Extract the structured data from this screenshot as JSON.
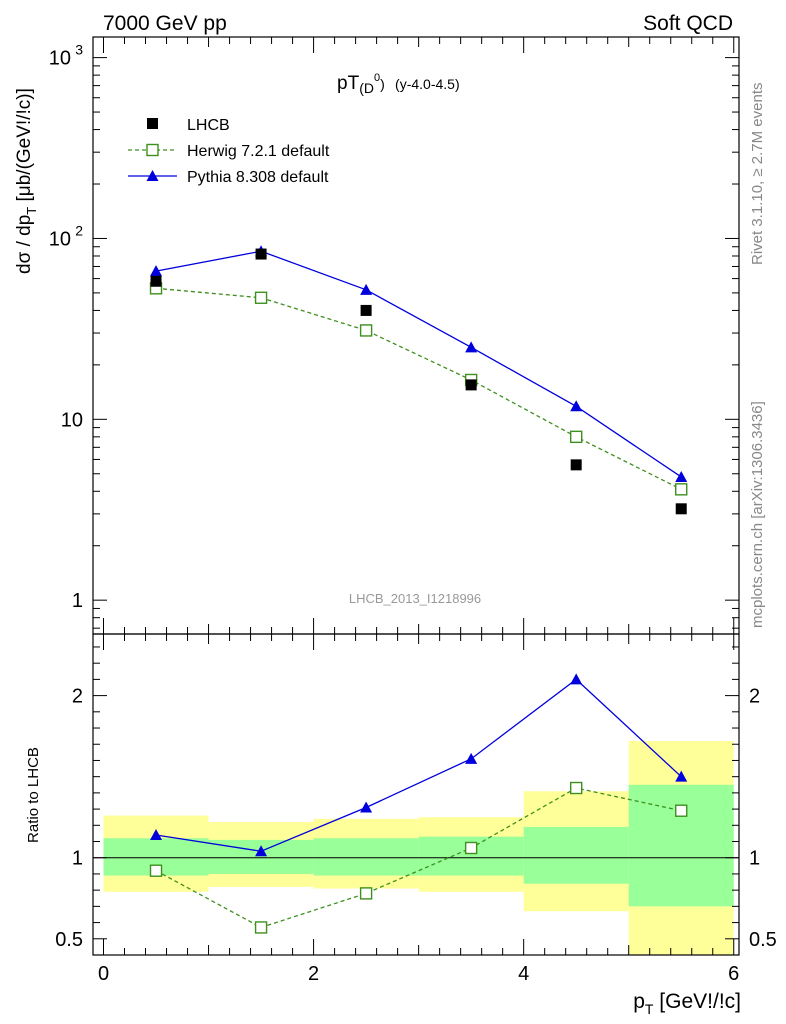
{
  "header": {
    "left": "7000 GeV pp",
    "right": "Soft QCD"
  },
  "side_texts": {
    "rivet": "Rivet 3.1.10, ≥ 2.7M events",
    "mcplots": "mcplots.cern.ch [arXiv:1306.3436]"
  },
  "colors": {
    "data": "#000000",
    "herwig": "#3f8f1f",
    "pythia": "#0000dd",
    "band_outer": "#ffff99",
    "band_inner": "#99ff99"
  },
  "chart_data": [
    {
      "type": "scatter",
      "panel": "main",
      "title_main": "pT",
      "title_sub": "(D",
      "title_sup": "0",
      "title_close": ")",
      "title_extra": "(y-4.0-4.5)",
      "ylabel": "dσ / dp_T [μb/(GeV!/!c)]",
      "ylabel_parts": {
        "a": "dσ / dp",
        "sub": "T",
        "b": " [μb/(GeV!/!c)]"
      },
      "yscale": "log",
      "ylim": [
        0.65,
        1300
      ],
      "xlim": [
        -0.1,
        6.05
      ],
      "y_ticks": [
        {
          "value": 1,
          "label": "1"
        },
        {
          "value": 10,
          "label": "10"
        },
        {
          "value": 100,
          "base": "10",
          "exp": "2"
        },
        {
          "value": 1000,
          "base": "10",
          "exp": "3"
        }
      ],
      "watermark": "LHCB_2013_I1218996",
      "legend_position": "top-left",
      "x": [
        0.5,
        1.5,
        2.5,
        3.5,
        4.5,
        5.5
      ],
      "series": [
        {
          "name": "LHCB",
          "style": "data",
          "values": [
            58,
            82,
            40,
            15.5,
            5.6,
            3.2
          ]
        },
        {
          "name": "Herwig 7.2.1 default",
          "style": "herwig",
          "values": [
            53,
            47,
            31,
            16.5,
            8.0,
            4.1
          ]
        },
        {
          "name": "Pythia 8.308 default",
          "style": "pythia",
          "values": [
            66,
            85,
            52,
            25,
            11.8,
            4.8
          ]
        }
      ]
    },
    {
      "type": "line",
      "panel": "ratio",
      "ylabel": "Ratio to LHCB",
      "xlabel": "p_T [GeV!/!c]",
      "xlabel_parts": {
        "a": "p",
        "sub": "T",
        "b": " [GeV!/!c]"
      },
      "ylim": [
        0.4,
        2.38
      ],
      "xlim": [
        -0.1,
        6.05
      ],
      "x_ticks": [
        {
          "value": 0,
          "label": "0"
        },
        {
          "value": 2,
          "label": "2"
        },
        {
          "value": 4,
          "label": "4"
        },
        {
          "value": 6,
          "label": "6"
        }
      ],
      "y_ticks": [
        {
          "value": 0.5,
          "label": "0.5"
        },
        {
          "value": 1,
          "label": "1"
        },
        {
          "value": 2,
          "label": "2"
        }
      ],
      "bins": [
        {
          "lo": 0,
          "hi": 1,
          "inner": [
            0.89,
            1.12
          ],
          "outer": [
            0.79,
            1.26
          ]
        },
        {
          "lo": 1,
          "hi": 2,
          "inner": [
            0.9,
            1.11
          ],
          "outer": [
            0.82,
            1.22
          ]
        },
        {
          "lo": 2,
          "hi": 3,
          "inner": [
            0.89,
            1.12
          ],
          "outer": [
            0.81,
            1.24
          ]
        },
        {
          "lo": 3,
          "hi": 4,
          "inner": [
            0.89,
            1.13
          ],
          "outer": [
            0.79,
            1.25
          ]
        },
        {
          "lo": 4,
          "hi": 5,
          "inner": [
            0.84,
            1.19
          ],
          "outer": [
            0.67,
            1.41
          ]
        },
        {
          "lo": 5,
          "hi": 6,
          "inner": [
            0.7,
            1.45
          ],
          "outer": [
            0.35,
            1.72
          ]
        }
      ],
      "x": [
        0.5,
        1.5,
        2.5,
        3.5,
        4.5,
        5.5
      ],
      "series": [
        {
          "name": "Herwig 7.2.1 default",
          "style": "herwig",
          "values": [
            0.92,
            0.57,
            0.78,
            1.06,
            1.43,
            1.29
          ]
        },
        {
          "name": "Pythia 8.308 default",
          "style": "pythia",
          "values": [
            1.14,
            1.04,
            1.31,
            1.61,
            2.1,
            1.5
          ]
        }
      ]
    }
  ]
}
